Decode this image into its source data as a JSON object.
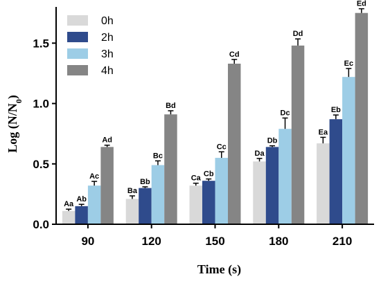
{
  "chart_data": {
    "type": "bar",
    "categories": [
      "90",
      "120",
      "150",
      "180",
      "210"
    ],
    "xlabel": "Time (s)",
    "ylabel_main": "Log (N/N",
    "ylabel_sub": "0",
    "ylabel_close": ")",
    "ylim": [
      0,
      1.8
    ],
    "yticks": [
      "0.0",
      "0.5",
      "1.0",
      "1.5"
    ],
    "ytick_values": [
      0,
      0.5,
      1.0,
      1.5
    ],
    "legend_position": "top-left",
    "grid": false,
    "series": [
      {
        "name": "0h",
        "color": "#d9d9d9",
        "values": [
          0.11,
          0.21,
          0.32,
          0.52,
          0.67
        ],
        "errors": [
          0.015,
          0.025,
          0.02,
          0.025,
          0.05
        ],
        "labels": [
          "Aa",
          "Ba",
          "Ca",
          "Da",
          "Ea"
        ]
      },
      {
        "name": "2h",
        "color": "#2f4b8c",
        "values": [
          0.15,
          0.3,
          0.36,
          0.64,
          0.87
        ],
        "errors": [
          0.015,
          0.01,
          0.015,
          0.01,
          0.035
        ],
        "labels": [
          "Ab",
          "Bb",
          "Cb",
          "Db",
          "Eb"
        ]
      },
      {
        "name": "3h",
        "color": "#9dcde6",
        "values": [
          0.32,
          0.49,
          0.55,
          0.79,
          1.22
        ],
        "errors": [
          0.035,
          0.035,
          0.05,
          0.09,
          0.07
        ],
        "labels": [
          "Ac",
          "Bc",
          "Cc",
          "Dc",
          "Ec"
        ]
      },
      {
        "name": "4h",
        "color": "#858585",
        "values": [
          0.64,
          0.91,
          1.33,
          1.48,
          1.75
        ],
        "errors": [
          0.015,
          0.03,
          0.035,
          0.055,
          0.035
        ],
        "labels": [
          "Ad",
          "Bd",
          "Cd",
          "Dd",
          "Ed"
        ]
      }
    ]
  }
}
